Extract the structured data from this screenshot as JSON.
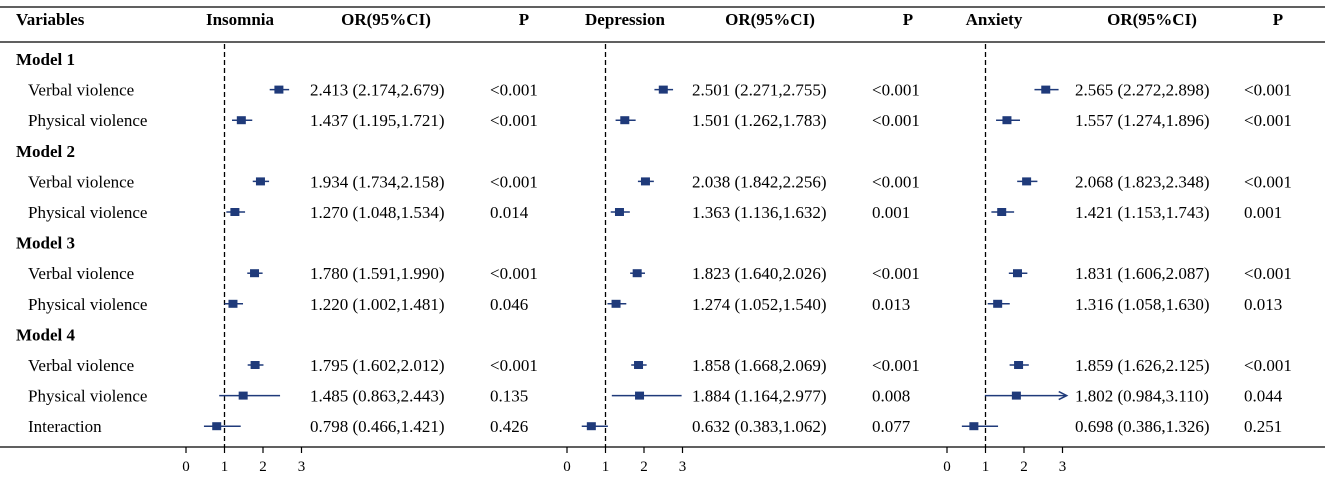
{
  "chart_data": {
    "type": "forest",
    "headers": {
      "variables": "Variables",
      "or_ci": "OR(95%CI)",
      "p": "P"
    },
    "outcomes": [
      "Insomnia",
      "Depression",
      "Anxiety"
    ],
    "reference_line": 1,
    "axis": {
      "range": [
        0,
        3
      ],
      "ticks": [
        "0",
        "1",
        "2",
        "3"
      ]
    },
    "colors": {
      "marker": "#1f3a7a",
      "line": "#1f3a7a",
      "text": "#000000",
      "rule": "#000000"
    },
    "groups": [
      {
        "name": "Model 1",
        "rows": [
          {
            "label": "Verbal violence",
            "estimates": [
              {
                "or": 2.413,
                "lo": 2.174,
                "hi": 2.679,
                "text": "2.413 (2.174,2.679)",
                "p": "<0.001"
              },
              {
                "or": 2.501,
                "lo": 2.271,
                "hi": 2.755,
                "text": "2.501 (2.271,2.755)",
                "p": "<0.001"
              },
              {
                "or": 2.565,
                "lo": 2.272,
                "hi": 2.898,
                "text": "2.565 (2.272,2.898)",
                "p": "<0.001"
              }
            ]
          },
          {
            "label": "Physical violence",
            "estimates": [
              {
                "or": 1.437,
                "lo": 1.195,
                "hi": 1.721,
                "text": "1.437 (1.195,1.721)",
                "p": "<0.001"
              },
              {
                "or": 1.501,
                "lo": 1.262,
                "hi": 1.783,
                "text": "1.501 (1.262,1.783)",
                "p": "<0.001"
              },
              {
                "or": 1.557,
                "lo": 1.274,
                "hi": 1.896,
                "text": "1.557 (1.274,1.896)",
                "p": "<0.001"
              }
            ]
          }
        ]
      },
      {
        "name": "Model 2",
        "rows": [
          {
            "label": "Verbal violence",
            "estimates": [
              {
                "or": 1.934,
                "lo": 1.734,
                "hi": 2.158,
                "text": "1.934 (1.734,2.158)",
                "p": "<0.001"
              },
              {
                "or": 2.038,
                "lo": 1.842,
                "hi": 2.256,
                "text": "2.038 (1.842,2.256)",
                "p": "<0.001"
              },
              {
                "or": 2.068,
                "lo": 1.823,
                "hi": 2.348,
                "text": "2.068 (1.823,2.348)",
                "p": "<0.001"
              }
            ]
          },
          {
            "label": "Physical violence",
            "estimates": [
              {
                "or": 1.27,
                "lo": 1.048,
                "hi": 1.534,
                "text": "1.270 (1.048,1.534)",
                "p": "0.014"
              },
              {
                "or": 1.363,
                "lo": 1.136,
                "hi": 1.632,
                "text": "1.363 (1.136,1.632)",
                "p": "0.001"
              },
              {
                "or": 1.421,
                "lo": 1.153,
                "hi": 1.743,
                "text": "1.421 (1.153,1.743)",
                "p": "0.001"
              }
            ]
          }
        ]
      },
      {
        "name": "Model 3",
        "rows": [
          {
            "label": "Verbal violence",
            "estimates": [
              {
                "or": 1.78,
                "lo": 1.591,
                "hi": 1.99,
                "text": "1.780 (1.591,1.990)",
                "p": "<0.001"
              },
              {
                "or": 1.823,
                "lo": 1.64,
                "hi": 2.026,
                "text": "1.823 (1.640,2.026)",
                "p": "<0.001"
              },
              {
                "or": 1.831,
                "lo": 1.606,
                "hi": 2.087,
                "text": "1.831 (1.606,2.087)",
                "p": "<0.001"
              }
            ]
          },
          {
            "label": "Physical violence",
            "estimates": [
              {
                "or": 1.22,
                "lo": 1.002,
                "hi": 1.481,
                "text": "1.220 (1.002,1.481)",
                "p": "0.046"
              },
              {
                "or": 1.274,
                "lo": 1.052,
                "hi": 1.54,
                "text": "1.274 (1.052,1.540)",
                "p": "0.013"
              },
              {
                "or": 1.316,
                "lo": 1.058,
                "hi": 1.63,
                "text": "1.316 (1.058,1.630)",
                "p": "0.013"
              }
            ]
          }
        ]
      },
      {
        "name": "Model 4",
        "rows": [
          {
            "label": "Verbal violence",
            "estimates": [
              {
                "or": 1.795,
                "lo": 1.602,
                "hi": 2.012,
                "text": "1.795 (1.602,2.012)",
                "p": "<0.001"
              },
              {
                "or": 1.858,
                "lo": 1.668,
                "hi": 2.069,
                "text": "1.858 (1.668,2.069)",
                "p": "<0.001"
              },
              {
                "or": 1.859,
                "lo": 1.626,
                "hi": 2.125,
                "text": "1.859 (1.626,2.125)",
                "p": "<0.001"
              }
            ]
          },
          {
            "label": "Physical violence",
            "estimates": [
              {
                "or": 1.485,
                "lo": 0.863,
                "hi": 2.443,
                "text": "1.485 (0.863,2.443)",
                "p": "0.135"
              },
              {
                "or": 1.884,
                "lo": 1.164,
                "hi": 2.977,
                "text": "1.884 (1.164,2.977)",
                "p": "0.008"
              },
              {
                "or": 1.802,
                "lo": 0.984,
                "hi": 3.11,
                "text": "1.802 (0.984,3.110)",
                "p": "0.044",
                "truncated": true
              }
            ]
          },
          {
            "label": "Interaction",
            "estimates": [
              {
                "or": 0.798,
                "lo": 0.466,
                "hi": 1.421,
                "text": "0.798 (0.466,1.421)",
                "p": "0.426"
              },
              {
                "or": 0.632,
                "lo": 0.383,
                "hi": 1.062,
                "text": "0.632 (0.383,1.062)",
                "p": "0.077"
              },
              {
                "or": 0.698,
                "lo": 0.386,
                "hi": 1.326,
                "text": "0.698 (0.386,1.326)",
                "p": "0.251"
              }
            ]
          }
        ]
      }
    ]
  }
}
